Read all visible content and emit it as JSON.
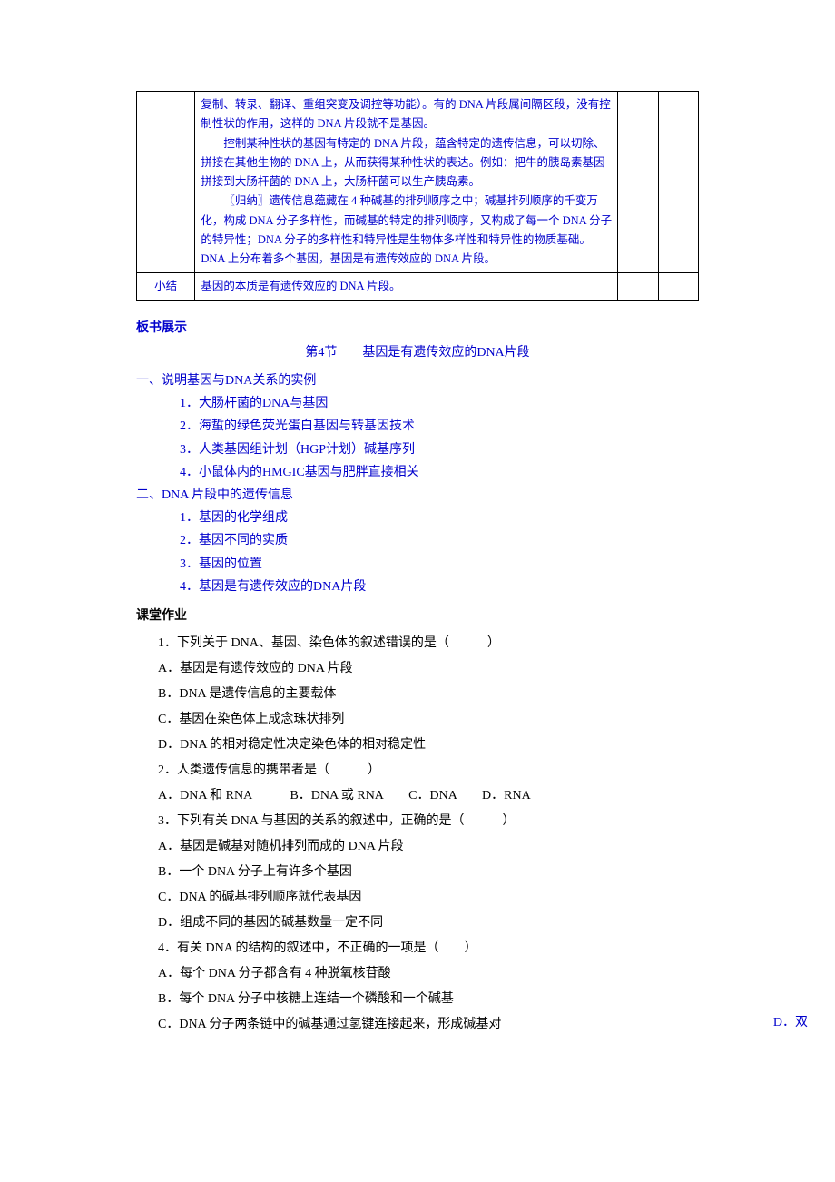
{
  "colors": {
    "textBlue": "#0000cc",
    "textBlack": "#000000",
    "border": "#000000",
    "background": "#ffffff"
  },
  "table": {
    "row1": {
      "colA": "",
      "colB_p1": "复制、转录、翻译、重组突变及调控等功能）。有的 DNA 片段属间隔区段，没有控制性状的作用，这样的 DNA 片段就不是基因。",
      "colB_p2": "控制某种性状的基因有特定的 DNA 片段，蕴含特定的遗传信息，可以切除、拼接在其他生物的 DNA 上，从而获得某种性状的表达。例如：把牛的胰岛素基因拼接到大肠杆菌的 DNA 上，大肠杆菌可以生产胰岛素。",
      "colB_p3": "〖归纳〗遗传信息蕴藏在 4 种碱基的排列顺序之中；碱基排列顺序的千变万化，构成 DNA 分子多样性，而碱基的特定的排列顺序，又构成了每一个 DNA 分子的特异性；DNA 分子的多样性和特异性是生物体多样性和特异性的物质基础。DNA 上分布着多个基因，基因是有遗传效应的 DNA 片段。",
      "colC": "",
      "colD": ""
    },
    "row2": {
      "colA": "小结",
      "colB": "基因的本质是有遗传效应的 DNA 片段。",
      "colC": "",
      "colD": ""
    }
  },
  "board": {
    "header": "板书展示",
    "lesson_title": "第4节　　基因是有遗传效应的DNA片段",
    "sec1": {
      "title": "一、说明基因与DNA关系的实例",
      "items": [
        "1．大肠杆菌的DNA与基因",
        "2．海蜇的绿色荧光蛋白基因与转基因技术",
        "3．人类基因组计划（HGP计划）碱基序列",
        "4．小鼠体内的HMGIC基因与肥胖直接相关"
      ]
    },
    "sec2": {
      "title": "二、DNA 片段中的遗传信息",
      "items": [
        "1．基因的化学组成",
        "2．基因不同的实质",
        "3．基因的位置",
        "4．基因是有遗传效应的DNA片段"
      ]
    }
  },
  "homework": {
    "header": "课堂作业",
    "q1": {
      "stem": "1．下列关于 DNA、基因、染色体的叙述错误的是（　　　）",
      "A": "A．基因是有遗传效应的 DNA 片段",
      "B": "B．DNA 是遗传信息的主要载体",
      "C": "C．基因在染色体上成念珠状排列",
      "D": "D．DNA 的相对稳定性决定染色体的相对稳定性"
    },
    "q2": {
      "stem": "2．人类遗传信息的携带者是（　　　）",
      "opts": "A．DNA 和 RNA　　　B．DNA 或 RNA　　C．DNA　　D．RNA"
    },
    "q3": {
      "stem": "3．下列有关 DNA 与基因的关系的叙述中，正确的是（　　　）",
      "A": "A．基因是碱基对随机排列而成的 DNA 片段",
      "B": "B．一个 DNA 分子上有许多个基因",
      "C": "C．DNA 的碱基排列顺序就代表基因",
      "D": "D．组成不同的基因的碱基数量一定不同"
    },
    "q4": {
      "stem": "4．有关 DNA 的结构的叙述中，不正确的一项是（　　）",
      "A": "A．每个 DNA 分子都含有 4 种脱氧核苷酸",
      "B": "B．每个 DNA 分子中核糖上连结一个磷酸和一个碱基",
      "C": "C．DNA 分子两条链中的碱基通过氢键连接起来，形成碱基对",
      "D": "D．双"
    }
  }
}
